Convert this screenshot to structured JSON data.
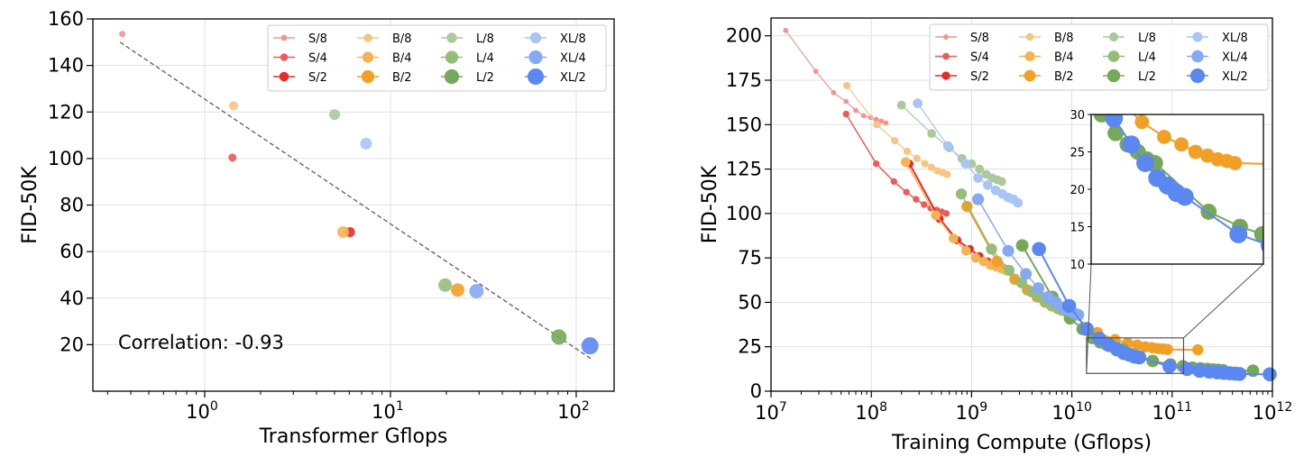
{
  "chart_data": [
    {
      "type": "scatter",
      "xlabel": "Transformer Gflops",
      "ylabel": "FID-50K",
      "x_scale": "log",
      "xlim": [
        0.25,
        160
      ],
      "ylim": [
        0,
        160
      ],
      "x_ticks": [
        {
          "value": 1,
          "base": "10",
          "exp": "0"
        },
        {
          "value": 10,
          "base": "10",
          "exp": "1"
        },
        {
          "value": 100,
          "base": "10",
          "exp": "2"
        }
      ],
      "y_ticks": [
        "20",
        "40",
        "60",
        "80",
        "100",
        "120",
        "140",
        "160"
      ],
      "grid": true,
      "legend_position": "top-right",
      "annotation": "Correlation: -0.93",
      "trend_line": {
        "x": [
          0.35,
          120
        ],
        "y": [
          150,
          14
        ]
      },
      "points": [
        {
          "name": "S/8",
          "x": 0.36,
          "y": 153.5
        },
        {
          "name": "S/4",
          "x": 1.41,
          "y": 100.4
        },
        {
          "name": "S/2",
          "x": 6.06,
          "y": 68.4
        },
        {
          "name": "B/8",
          "x": 1.43,
          "y": 122.7
        },
        {
          "name": "B/4",
          "x": 5.56,
          "y": 68.4
        },
        {
          "name": "B/2",
          "x": 23.01,
          "y": 43.5
        },
        {
          "name": "L/8",
          "x": 5.0,
          "y": 118.9
        },
        {
          "name": "L/4",
          "x": 19.7,
          "y": 45.6
        },
        {
          "name": "L/2",
          "x": 80.7,
          "y": 23.3
        },
        {
          "name": "XL/8",
          "x": 7.39,
          "y": 106.4
        },
        {
          "name": "XL/4",
          "x": 29.05,
          "y": 43.0
        },
        {
          "name": "XL/2",
          "x": 118.6,
          "y": 19.5
        }
      ]
    },
    {
      "type": "line",
      "xlabel": "Training Compute (Gflops)",
      "ylabel": "FID-50K",
      "x_scale": "log",
      "xlim": [
        10000000.0,
        1000000000000.0
      ],
      "ylim": [
        0,
        210
      ],
      "x_ticks": [
        {
          "value": 10000000.0,
          "base": "10",
          "exp": "7"
        },
        {
          "value": 100000000.0,
          "base": "10",
          "exp": "8"
        },
        {
          "value": 1000000000.0,
          "base": "10",
          "exp": "9"
        },
        {
          "value": 10000000000.0,
          "base": "10",
          "exp": "10"
        },
        {
          "value": 100000000000.0,
          "base": "10",
          "exp": "11"
        },
        {
          "value": 1000000000000.0,
          "base": "10",
          "exp": "12"
        }
      ],
      "y_ticks": [
        "0",
        "25",
        "50",
        "75",
        "100",
        "125",
        "150",
        "175",
        "200"
      ],
      "grid": true,
      "legend_position": "top-right",
      "inset": {
        "xlim": [
          14000000000.0,
          130000000000.0
        ],
        "ylim": [
          10,
          30
        ],
        "y_ticks": [
          "10",
          "15",
          "20",
          "25",
          "30"
        ]
      },
      "series": [
        {
          "name": "S/8",
          "x": [
            14000000.0,
            28000000.0,
            42000000.0,
            56000000.0,
            70000000.0,
            84000000.0,
            98000000.0,
            112000000.0,
            126000000.0,
            140000000.0
          ],
          "y": [
            203,
            180,
            168,
            163,
            158,
            155,
            154,
            153,
            152,
            151
          ]
        },
        {
          "name": "S/4",
          "x": [
            56000000.0,
            112000000.0,
            168000000.0,
            224000000.0,
            280000000.0,
            336000000.0,
            392000000.0,
            448000000.0,
            504000000.0,
            560000000.0
          ],
          "y": [
            156,
            128,
            118,
            112,
            108,
            105,
            103,
            102,
            101,
            100
          ]
        },
        {
          "name": "S/2",
          "x": [
            240000000.0,
            480000000.0,
            720000000.0,
            960000000.0,
            1200000000.0,
            1440000000.0,
            1680000000.0,
            1920000000.0,
            2160000000.0,
            2400000000.0
          ],
          "y": [
            128,
            97,
            85,
            80,
            76,
            73,
            71,
            70,
            69,
            68
          ]
        },
        {
          "name": "B/8",
          "x": [
            57000000.0,
            114000000.0,
            171000000.0,
            228000000.0,
            285000000.0,
            342000000.0,
            399000000.0,
            456000000.0,
            513000000.0,
            570000000.0
          ],
          "y": [
            172,
            150,
            141,
            135,
            131,
            128,
            126,
            124,
            123,
            122
          ]
        },
        {
          "name": "B/4",
          "x": [
            220000000.0,
            440000000.0,
            660000000.0,
            880000000.0,
            1100000000.0,
            1320000000.0,
            1540000000.0,
            1760000000.0,
            1980000000.0,
            2200000000.0
          ],
          "y": [
            129,
            99,
            86,
            79,
            75,
            73,
            71,
            70,
            69,
            68
          ]
        },
        {
          "name": "B/2",
          "x": [
            900000000.0,
            1800000000.0,
            2700000000.0,
            3600000000.0,
            4500000000.0,
            5400000000.0,
            6300000000.0,
            7200000000.0,
            8100000000.0,
            9000000000.0,
            18000000000.0,
            27000000000.0,
            36000000000.0,
            45000000000.0,
            54000000000.0,
            63000000000.0,
            72000000000.0,
            81000000000.0,
            90000000000.0,
            180000000000.0
          ],
          "y": [
            104,
            73,
            63,
            57,
            53,
            50,
            48,
            46.5,
            45.5,
            44.5,
            33,
            29,
            27,
            26,
            25,
            24.5,
            24,
            23.8,
            23.5,
            23.3
          ]
        },
        {
          "name": "L/8",
          "x": [
            200000000.0,
            400000000.0,
            600000000.0,
            800000000.0,
            1000000000.0,
            1200000000.0,
            1400000000.0,
            1600000000.0,
            1800000000.0,
            2000000000.0
          ],
          "y": [
            161,
            145,
            137,
            131,
            128,
            125,
            122,
            120,
            119,
            118
          ]
        },
        {
          "name": "L/4",
          "x": [
            790000000.0,
            1580000000.0,
            2370000000.0,
            3160000000.0,
            3950000000.0,
            4740000000.0,
            5530000000.0,
            6320000000.0,
            7110000000.0,
            7900000000.0
          ],
          "y": [
            111,
            80,
            68,
            61,
            56,
            53,
            50,
            48.5,
            47,
            45.6
          ]
        },
        {
          "name": "L/2",
          "x": [
            3200000000.0,
            6400000000.0,
            9600000000.0,
            12800000000.0,
            16000000000.0,
            19200000000.0,
            22400000000.0,
            25600000000.0,
            28800000000.0,
            32000000000.0,
            64000000000.0,
            96000000000.0,
            128000000000.0,
            160000000000.0,
            192000000000.0,
            224000000000.0,
            256000000000.0,
            288000000000.0,
            320000000000.0,
            640000000000.0
          ],
          "y": [
            82,
            53,
            41,
            35,
            30,
            27.5,
            26,
            25,
            24,
            23.5,
            17,
            15,
            14,
            13.2,
            12.8,
            12.5,
            12.2,
            12,
            11.8,
            11.5
          ]
        },
        {
          "name": "XL/8",
          "x": [
            290000000.0,
            580000000.0,
            870000000.0,
            1160000000.0,
            1450000000.0,
            1740000000.0,
            2030000000.0,
            2320000000.0,
            2610000000.0,
            2900000000.0
          ],
          "y": [
            162,
            138,
            128,
            120,
            116,
            113,
            111,
            109,
            108,
            106
          ]
        },
        {
          "name": "XL/4",
          "x": [
            1160000000.0,
            2320000000.0,
            3480000000.0,
            4640000000.0,
            5800000000.0,
            6960000000.0,
            8120000000.0,
            9280000000.0,
            10400000000.0,
            11600000000.0
          ],
          "y": [
            108,
            79,
            66,
            58,
            53,
            50,
            47,
            45.5,
            44,
            43
          ]
        },
        {
          "name": "XL/2",
          "x": [
            4700000000.0,
            9400000000.0,
            14100000000.0,
            18800000000.0,
            23500000000.0,
            28200000000.0,
            32900000000.0,
            37600000000.0,
            42300000000.0,
            47000000000.0,
            94000000000.0,
            141000000000.0,
            188000000000.0,
            235000000000.0,
            282000000000.0,
            329000000000.0,
            376000000000.0,
            423000000000.0,
            470000000000.0,
            940000000000.0
          ],
          "y": [
            80,
            48,
            35,
            29.5,
            26,
            23.5,
            21.5,
            20.5,
            19.5,
            19,
            14,
            12.5,
            11.5,
            11,
            10.6,
            10.3,
            10.1,
            9.9,
            9.7,
            9.5
          ]
        }
      ]
    }
  ],
  "legend": {
    "labels": [
      "S/8",
      "B/8",
      "L/8",
      "XL/8",
      "S/4",
      "B/4",
      "L/4",
      "XL/4",
      "S/2",
      "B/2",
      "L/2",
      "XL/2"
    ]
  },
  "colors": {
    "S/8": "#f29494",
    "S/4": "#ec5a5a",
    "S/2": "#e8292a",
    "B/8": "#f6c582",
    "B/4": "#f4b454",
    "B/2": "#f29f26",
    "L/8": "#abc99a",
    "L/4": "#96bc7c",
    "L/2": "#76a85a",
    "XL/8": "#a9c4f6",
    "XL/4": "#86a9f4",
    "XL/2": "#5b87f0",
    "grid": "#e0e0e0",
    "trend": "#666666"
  },
  "marker_sizes": {
    "S/8": 3.5,
    "S/4": 4.5,
    "S/2": 5.5,
    "B/8": 5,
    "B/4": 6.5,
    "B/2": 7.5,
    "L/8": 6,
    "L/4": 7.5,
    "L/2": 8.5,
    "XL/8": 6.5,
    "XL/4": 8,
    "XL/2": 9.5
  }
}
